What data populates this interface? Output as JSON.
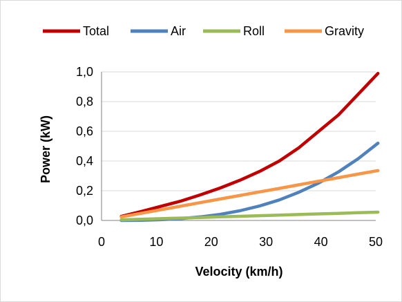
{
  "chart_data": {
    "type": "line",
    "title": "",
    "xlabel": "Velocity (km/h)",
    "ylabel": "Power (kW)",
    "xlim": [
      0,
      50
    ],
    "ylim": [
      0,
      1.0
    ],
    "x_ticks": [
      "0",
      "10",
      "20",
      "30",
      "40",
      "50"
    ],
    "y_ticks": [
      "0,0",
      "0,2",
      "0,4",
      "0,6",
      "0,8",
      "1,0"
    ],
    "grid": "horizontal",
    "legend_position": "top",
    "x": [
      3.6,
      7.2,
      10.8,
      14.4,
      18,
      21.6,
      25.2,
      28.8,
      32.4,
      36,
      39.6,
      43.2,
      46.8,
      50.4
    ],
    "series": [
      {
        "name": "Total",
        "color": "#c00000",
        "values": [
          0.028,
          0.06,
          0.095,
          0.13,
          0.172,
          0.218,
          0.27,
          0.33,
          0.4,
          0.49,
          0.6,
          0.71,
          0.85,
          0.99
        ]
      },
      {
        "name": "Air",
        "color": "#4f81bd",
        "values": [
          0.0002,
          0.0016,
          0.005,
          0.012,
          0.024,
          0.041,
          0.065,
          0.097,
          0.138,
          0.19,
          0.252,
          0.327,
          0.416,
          0.52
        ]
      },
      {
        "name": "Roll",
        "color": "#9bbb59",
        "values": [
          0.004,
          0.008,
          0.012,
          0.016,
          0.02,
          0.024,
          0.028,
          0.032,
          0.036,
          0.04,
          0.044,
          0.048,
          0.052,
          0.056
        ]
      },
      {
        "name": "Gravity",
        "color": "#f79646",
        "values": [
          0.024,
          0.048,
          0.072,
          0.096,
          0.12,
          0.144,
          0.168,
          0.192,
          0.216,
          0.24,
          0.264,
          0.288,
          0.312,
          0.336
        ]
      }
    ]
  }
}
